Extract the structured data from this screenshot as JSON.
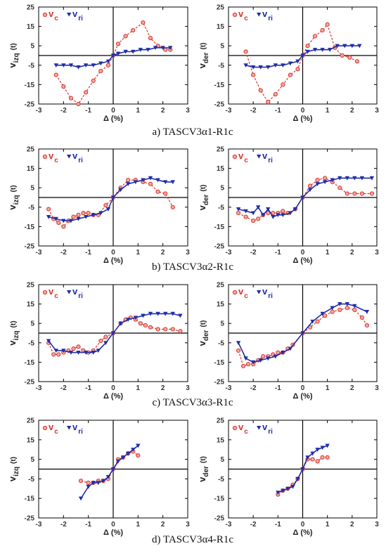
{
  "colors": {
    "c_series": "#d9342b",
    "c_fill": "#f2a7a3",
    "ri_series": "#1f2ea8"
  },
  "captions": [
    "a)   TASCV3α1-R1c",
    "b)   TASCV3α2-R1c",
    "c)   TASCV3α3-R1c",
    "d)   TASCV3α4-R1c"
  ],
  "chart_data": [
    {
      "type": "line",
      "panel": "a",
      "side": "izq",
      "xlabel": "Δ (%)",
      "ylabel_main": "v",
      "ylabel_sub": "izq",
      "ylabel_unit": "(t)",
      "xlim": [
        -3,
        3
      ],
      "ylim": [
        -25,
        25
      ],
      "xticks": [
        "-3",
        "-2",
        "-1",
        "0",
        "1",
        "2",
        "3"
      ],
      "yticks": [
        "-25",
        "-15",
        "-5",
        "5",
        "15",
        "25"
      ],
      "series": [
        {
          "name_main": "v",
          "name_sub": "c",
          "marker": "circle",
          "x": [
            -2.3,
            -2.0,
            -1.7,
            -1.4,
            -1.1,
            -0.8,
            -0.5,
            -0.2,
            0.0,
            0.2,
            0.5,
            0.8,
            1.2,
            1.5,
            1.8,
            2.1,
            2.3
          ],
          "y": [
            -10,
            -16,
            -22,
            -25,
            -19,
            -13,
            -8,
            -5,
            0,
            6,
            10,
            13,
            17,
            9,
            5,
            3,
            3
          ]
        },
        {
          "name_main": "v",
          "name_sub": "ri",
          "marker": "triangle",
          "x": [
            -2.3,
            -2.0,
            -1.7,
            -1.4,
            -1.1,
            -0.8,
            -0.5,
            -0.2,
            0.0,
            0.2,
            0.5,
            0.8,
            1.1,
            1.4,
            1.7,
            2.0,
            2.3
          ],
          "y": [
            -5,
            -5,
            -5,
            -6,
            -5,
            -5,
            -4,
            -3,
            0,
            1,
            2,
            2,
            3,
            3,
            4,
            4,
            4
          ]
        }
      ]
    },
    {
      "type": "line",
      "panel": "a",
      "side": "der",
      "xlabel": "Δ (%)",
      "ylabel_main": "v",
      "ylabel_sub": "der",
      "ylabel_unit": "(t)",
      "xlim": [
        -3,
        3
      ],
      "ylim": [
        -25,
        25
      ],
      "xticks": [
        "-3",
        "-2",
        "-1",
        "0",
        "1",
        "2",
        "3"
      ],
      "yticks": [
        "-25",
        "-15",
        "-5",
        "5",
        "15",
        "25"
      ],
      "series": [
        {
          "name_main": "v",
          "name_sub": "c",
          "marker": "circle",
          "x": [
            -2.3,
            -2.0,
            -1.7,
            -1.4,
            -1.1,
            -0.8,
            -0.5,
            -0.2,
            0.0,
            0.2,
            0.5,
            0.8,
            1.0,
            1.3,
            1.6,
            1.9,
            2.2
          ],
          "y": [
            2,
            -10,
            -18,
            -24,
            -20,
            -15,
            -10,
            -7,
            0,
            5,
            10,
            13,
            16,
            4,
            0,
            -1,
            -3
          ]
        },
        {
          "name_main": "v",
          "name_sub": "ri",
          "marker": "triangle",
          "x": [
            -2.3,
            -2.0,
            -1.7,
            -1.4,
            -1.1,
            -0.8,
            -0.5,
            -0.2,
            0.0,
            0.2,
            0.5,
            0.8,
            1.1,
            1.4,
            1.7,
            2.0,
            2.3
          ],
          "y": [
            -5,
            -6,
            -6,
            -6,
            -5,
            -5,
            -4,
            -3,
            0,
            2,
            3,
            3,
            3,
            5,
            5,
            5,
            5
          ]
        }
      ]
    },
    {
      "type": "line",
      "panel": "b",
      "side": "izq",
      "xlabel": "Δ (%)",
      "ylabel_main": "v",
      "ylabel_sub": "izq",
      "ylabel_unit": "(t)",
      "xlim": [
        -3,
        3
      ],
      "ylim": [
        -25,
        25
      ],
      "xticks": [
        "-3",
        "-2",
        "-1",
        "0",
        "1",
        "2",
        "3"
      ],
      "yticks": [
        "-25",
        "-15",
        "-5",
        "5",
        "15",
        "25"
      ],
      "series": [
        {
          "name_main": "v",
          "name_sub": "c",
          "marker": "circle",
          "x": [
            -2.6,
            -2.4,
            -2.2,
            -2.0,
            -1.8,
            -1.6,
            -1.4,
            -1.2,
            -1.0,
            -0.8,
            -0.6,
            -0.3,
            0.0,
            0.3,
            0.6,
            0.9,
            1.2,
            1.5,
            1.8,
            2.1,
            2.4
          ],
          "y": [
            -6,
            -11,
            -13,
            -15,
            -12,
            -10,
            -9,
            -8,
            -8,
            -9,
            -9,
            -4,
            0,
            5,
            9,
            9,
            8,
            7,
            3,
            2,
            -5
          ]
        },
        {
          "name_main": "v",
          "name_sub": "ri",
          "marker": "triangle",
          "x": [
            -2.6,
            -2.3,
            -2.0,
            -1.7,
            -1.4,
            -1.1,
            -0.8,
            -0.5,
            -0.2,
            0.0,
            0.3,
            0.6,
            0.9,
            1.2,
            1.5,
            1.8,
            2.1,
            2.4
          ],
          "y": [
            -10,
            -11,
            -12,
            -12,
            -11,
            -10,
            -9,
            -8,
            -6,
            0,
            4,
            7,
            8,
            9,
            10,
            9,
            8,
            8
          ]
        }
      ]
    },
    {
      "type": "line",
      "panel": "b",
      "side": "der",
      "xlabel": "Δ (%)",
      "ylabel_main": "v",
      "ylabel_sub": "der",
      "ylabel_unit": "(t)",
      "xlim": [
        -3,
        3
      ],
      "ylim": [
        -25,
        25
      ],
      "xticks": [
        "-3",
        "-2",
        "-1",
        "0",
        "1",
        "2",
        "3"
      ],
      "yticks": [
        "-25",
        "-15",
        "-5",
        "5",
        "15",
        "25"
      ],
      "series": [
        {
          "name_main": "v",
          "name_sub": "c",
          "marker": "circle",
          "x": [
            -2.6,
            -2.3,
            -2.0,
            -1.8,
            -1.6,
            -1.4,
            -1.2,
            -1.0,
            -0.8,
            -0.6,
            -0.3,
            0.0,
            0.3,
            0.6,
            0.9,
            1.2,
            1.5,
            1.8,
            2.1,
            2.4,
            2.8
          ],
          "y": [
            -8,
            -10,
            -12,
            -11,
            -9,
            -8,
            -8,
            -8,
            -7,
            -8,
            -6,
            0,
            6,
            9,
            10,
            8,
            5,
            2,
            2,
            2,
            2
          ]
        },
        {
          "name_main": "v",
          "name_sub": "ri",
          "marker": "triangle",
          "x": [
            -2.6,
            -2.3,
            -2.0,
            -1.8,
            -1.6,
            -1.4,
            -1.2,
            -1.0,
            -0.8,
            -0.5,
            -0.3,
            0.0,
            0.3,
            0.6,
            0.9,
            1.2,
            1.5,
            1.8,
            2.1,
            2.4,
            2.8
          ],
          "y": [
            -6,
            -7,
            -8,
            -5,
            -9,
            -6,
            -10,
            -9,
            -9,
            -8,
            -6,
            0,
            4,
            7,
            8,
            9,
            10,
            10,
            10,
            10,
            10
          ]
        }
      ]
    },
    {
      "type": "line",
      "panel": "c",
      "side": "izq",
      "xlabel": "Δ (%)",
      "ylabel_main": "v",
      "ylabel_sub": "izq",
      "ylabel_unit": "(t)",
      "xlim": [
        -3,
        3
      ],
      "ylim": [
        -25,
        25
      ],
      "xticks": [
        "-3",
        "-2",
        "-1",
        "0",
        "1",
        "2",
        "3"
      ],
      "yticks": [
        "-25",
        "-15",
        "-5",
        "5",
        "15",
        "25"
      ],
      "series": [
        {
          "name_main": "v",
          "name_sub": "c",
          "marker": "circle",
          "x": [
            -2.6,
            -2.4,
            -2.2,
            -2.0,
            -1.8,
            -1.6,
            -1.4,
            -1.2,
            -1.0,
            -0.8,
            -0.5,
            -0.3,
            0.0,
            0.3,
            0.5,
            0.7,
            0.9,
            1.1,
            1.3,
            1.5,
            1.8,
            2.1,
            2.4,
            2.7
          ],
          "y": [
            -5,
            -11,
            -11,
            -10,
            -9,
            -8,
            -7,
            -9,
            -10,
            -9,
            -4,
            -2,
            0,
            5,
            7,
            8,
            7,
            5,
            4,
            3,
            2,
            2,
            2,
            1
          ]
        },
        {
          "name_main": "v",
          "name_sub": "ri",
          "marker": "triangle",
          "x": [
            -2.6,
            -2.3,
            -2.0,
            -1.7,
            -1.4,
            -1.1,
            -0.8,
            -0.6,
            -0.3,
            0.0,
            0.3,
            0.6,
            0.9,
            1.2,
            1.5,
            1.8,
            2.1,
            2.4,
            2.7
          ],
          "y": [
            -4,
            -9,
            -9,
            -10,
            -10,
            -10,
            -10,
            -9,
            -5,
            0,
            5,
            7,
            8,
            9,
            10,
            10,
            10,
            10,
            9
          ]
        }
      ]
    },
    {
      "type": "line",
      "panel": "c",
      "side": "der",
      "xlabel": "Δ (%)",
      "ylabel_main": "v",
      "ylabel_sub": "der",
      "ylabel_unit": "(t)",
      "xlim": [
        -3,
        3
      ],
      "ylim": [
        -25,
        25
      ],
      "xticks": [
        "-3",
        "-2",
        "-1",
        "0",
        "1",
        "2",
        "3"
      ],
      "yticks": [
        "-25",
        "-15",
        "-5",
        "5",
        "15",
        "25"
      ],
      "series": [
        {
          "name_main": "v",
          "name_sub": "c",
          "marker": "circle",
          "x": [
            -2.6,
            -2.4,
            -2.2,
            -2.0,
            -1.8,
            -1.6,
            -1.4,
            -1.2,
            -1.0,
            -0.8,
            -0.6,
            -0.4,
            0.0,
            0.3,
            0.6,
            0.9,
            1.2,
            1.5,
            1.8,
            2.1,
            2.4,
            2.6
          ],
          "y": [
            -9,
            -17,
            -16,
            -16,
            -14,
            -12,
            -12,
            -11,
            -10,
            -10,
            -8,
            -6,
            0,
            3,
            6,
            9,
            11,
            12,
            13,
            12,
            8,
            4
          ]
        },
        {
          "name_main": "v",
          "name_sub": "ri",
          "marker": "triangle",
          "x": [
            -2.6,
            -2.3,
            -2.0,
            -1.7,
            -1.4,
            -1.1,
            -0.8,
            -0.5,
            0.0,
            0.4,
            0.8,
            1.2,
            1.5,
            1.8,
            2.1,
            2.6
          ],
          "y": [
            -5,
            -13,
            -15,
            -14,
            -13,
            -12,
            -10,
            -8,
            0,
            6,
            10,
            13,
            15,
            15,
            14,
            11
          ]
        }
      ]
    },
    {
      "type": "line",
      "panel": "d",
      "side": "izq",
      "xlabel": "Δ (%)",
      "ylabel_main": "v",
      "ylabel_sub": "izq",
      "ylabel_unit": "(t)",
      "xlim": [
        -3,
        3
      ],
      "ylim": [
        -25,
        25
      ],
      "xticks": [
        "-3",
        "-2",
        "-1",
        "0",
        "1",
        "2",
        "3"
      ],
      "yticks": [
        "-25",
        "-15",
        "-5",
        "5",
        "15",
        "25"
      ],
      "series": [
        {
          "name_main": "v",
          "name_sub": "c",
          "marker": "circle",
          "x": [
            -1.3,
            -1.0,
            -0.8,
            -0.6,
            -0.4,
            -0.2,
            0.0,
            0.2,
            0.4,
            0.6,
            0.8,
            1.0
          ],
          "y": [
            -6,
            -7,
            -7,
            -6,
            -6,
            -5,
            0,
            5,
            6,
            8,
            9,
            7
          ]
        },
        {
          "name_main": "v",
          "name_sub": "ri",
          "marker": "triangle",
          "x": [
            -1.3,
            -1.0,
            -0.8,
            -0.6,
            -0.4,
            -0.2,
            0.0,
            0.2,
            0.4,
            0.6,
            0.8,
            1.0
          ],
          "y": [
            -15,
            -9,
            -7,
            -7,
            -6,
            -4,
            0,
            4,
            6,
            8,
            10,
            12
          ]
        }
      ]
    },
    {
      "type": "line",
      "panel": "d",
      "side": "der",
      "xlabel": "Δ (%)",
      "ylabel_main": "v",
      "ylabel_sub": "der",
      "ylabel_unit": "(t)",
      "xlim": [
        -3,
        3
      ],
      "ylim": [
        -25,
        25
      ],
      "xticks": [
        "-3",
        "-2",
        "-1",
        "0",
        "1",
        "2",
        "3"
      ],
      "yticks": [
        "-25",
        "-15",
        "-5",
        "5",
        "15",
        "25"
      ],
      "series": [
        {
          "name_main": "v",
          "name_sub": "c",
          "marker": "circle",
          "x": [
            -1.0,
            -0.8,
            -0.6,
            -0.4,
            -0.2,
            0.0,
            0.2,
            0.4,
            0.6,
            0.8,
            1.0
          ],
          "y": [
            -13,
            -11,
            -10,
            -8,
            -5,
            0,
            5,
            5,
            4,
            6,
            6
          ]
        },
        {
          "name_main": "v",
          "name_sub": "ri",
          "marker": "triangle",
          "x": [
            -1.0,
            -0.8,
            -0.6,
            -0.4,
            -0.2,
            0.0,
            0.2,
            0.4,
            0.6,
            0.8,
            1.0
          ],
          "y": [
            -12,
            -11,
            -10,
            -9,
            -5,
            0,
            6,
            8,
            10,
            11,
            12
          ]
        }
      ]
    }
  ]
}
